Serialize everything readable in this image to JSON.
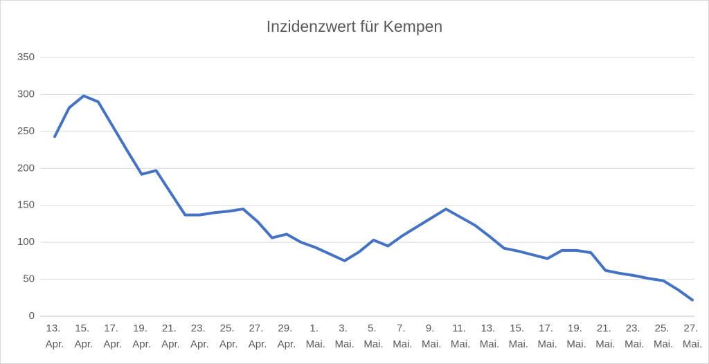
{
  "chart_data": {
    "type": "line",
    "title": "Inzidenzwert für Kempen",
    "categories": [
      "13. Apr.",
      null,
      "15. Apr.",
      null,
      "17. Apr.",
      null,
      "19. Apr.",
      null,
      "21. Apr.",
      null,
      "23. Apr.",
      null,
      "25. Apr.",
      null,
      "27. Apr.",
      null,
      "29. Apr.",
      null,
      "1. Mai.",
      null,
      "3. Mai.",
      null,
      "5. Mai.",
      null,
      "7. Mai.",
      null,
      "9. Mai.",
      null,
      "11. Mai.",
      null,
      "13. Mai.",
      null,
      "15. Mai.",
      null,
      "17. Mai.",
      null,
      "19. Mai.",
      null,
      "21. Mai.",
      null,
      "23. Mai.",
      null,
      "25. Mai.",
      null,
      "27. Mai."
    ],
    "series": [
      {
        "name": "Inzidenzwert",
        "color": "#4472c4",
        "values": [
          243,
          282,
          298,
          290,
          257,
          224,
          192,
          197,
          167,
          137,
          137,
          140,
          142,
          145,
          128,
          106,
          111,
          100,
          93,
          84,
          75,
          87,
          103,
          95,
          109,
          121,
          133,
          145,
          134,
          123,
          108,
          92,
          88,
          83,
          78,
          89,
          89,
          86,
          62,
          58,
          55,
          51,
          48,
          36,
          22
        ]
      }
    ],
    "ylim": [
      0,
      350
    ],
    "yticks": [
      0,
      50,
      100,
      150,
      200,
      250,
      300,
      350
    ],
    "grid": true
  }
}
